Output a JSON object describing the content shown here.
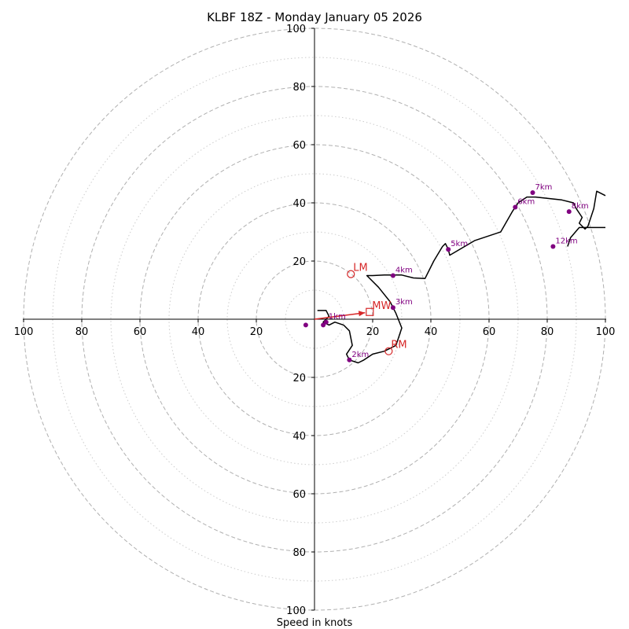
{
  "chart_data": {
    "type": "hodograph",
    "title": "KLBF 18Z - Monday January 05 2026",
    "xlabel": "Speed in knots",
    "units": "knots",
    "max_speed": 100,
    "ring_major_values": [
      20,
      40,
      60,
      80,
      100
    ],
    "ring_minor_values": [
      10,
      30,
      50,
      70,
      90
    ],
    "tick_labels": {
      "top": [
        "20",
        "40",
        "60",
        "80",
        "100"
      ],
      "bottom": [
        "20",
        "40",
        "60",
        "80",
        "100"
      ],
      "left": [
        "20",
        "40",
        "60",
        "80",
        "100"
      ],
      "right": [
        "20",
        "40",
        "60",
        "80",
        "100"
      ]
    },
    "trace": [
      [
        1,
        3
      ],
      [
        4,
        3
      ],
      [
        5,
        1
      ],
      [
        3,
        -1
      ],
      [
        5,
        -2
      ],
      [
        7,
        -1
      ],
      [
        10,
        -2
      ],
      [
        12,
        -4
      ],
      [
        13,
        -9
      ],
      [
        11,
        -12
      ],
      [
        12,
        -14
      ],
      [
        15,
        -15
      ],
      [
        17,
        -14
      ],
      [
        20,
        -12
      ],
      [
        24,
        -11
      ],
      [
        28,
        -9
      ],
      [
        30,
        -3
      ],
      [
        28,
        2
      ],
      [
        26,
        6
      ],
      [
        22,
        11
      ],
      [
        18,
        15
      ],
      [
        20,
        15
      ],
      [
        24,
        15.2
      ],
      [
        30,
        15.2
      ],
      [
        34,
        14.2
      ],
      [
        38,
        14
      ],
      [
        41,
        20
      ],
      [
        44,
        25
      ],
      [
        45,
        26
      ],
      [
        46,
        24
      ],
      [
        46.5,
        22
      ],
      [
        55,
        27
      ],
      [
        64,
        30
      ],
      [
        68,
        37
      ],
      [
        70,
        40
      ],
      [
        73,
        42
      ],
      [
        76,
        42
      ],
      [
        85,
        41
      ],
      [
        89,
        40
      ],
      [
        90,
        38
      ],
      [
        92,
        35
      ],
      [
        91,
        33
      ],
      [
        93,
        31
      ],
      [
        94,
        32
      ],
      [
        96,
        38
      ],
      [
        97,
        44
      ],
      [
        100,
        42.5
      ]
    ],
    "trace_branch": [
      [
        87,
        25
      ],
      [
        88,
        28
      ],
      [
        91,
        31.5
      ],
      [
        100,
        31.5
      ]
    ],
    "height_markers": [
      {
        "label": "1km",
        "u": 4,
        "v": -1
      },
      {
        "label": "2km",
        "u": 12,
        "v": -14
      },
      {
        "label": "3km",
        "u": 27,
        "v": 4
      },
      {
        "label": "4km",
        "u": 27,
        "v": 15
      },
      {
        "label": "5km",
        "u": 46,
        "v": 24
      },
      {
        "label": "6km",
        "u": 69,
        "v": 38.5
      },
      {
        "label": "7km",
        "u": 75,
        "v": 43.5
      },
      {
        "label": "8km",
        "u": 87.5,
        "v": 37
      },
      {
        "label": "12km",
        "u": 82,
        "v": 25
      }
    ],
    "extra_points": [
      {
        "u": 3,
        "v": -2
      },
      {
        "u": -3,
        "v": -2
      }
    ],
    "storm_motion": [
      {
        "label": "LM",
        "u": 12.5,
        "v": 15.5,
        "marker": "circle"
      },
      {
        "label": "RM",
        "u": 25.5,
        "v": -11,
        "marker": "circle"
      },
      {
        "label": "MW",
        "u": 19,
        "v": 2.5,
        "marker": "square"
      }
    ],
    "shear_vector": {
      "from": [
        0,
        0
      ],
      "to": [
        19,
        2.5
      ]
    },
    "colors": {
      "trace": "#000000",
      "markers": "#800080",
      "storm_motion": "#d62728",
      "grid": "#b0b0b0",
      "axes": "#000000"
    }
  }
}
